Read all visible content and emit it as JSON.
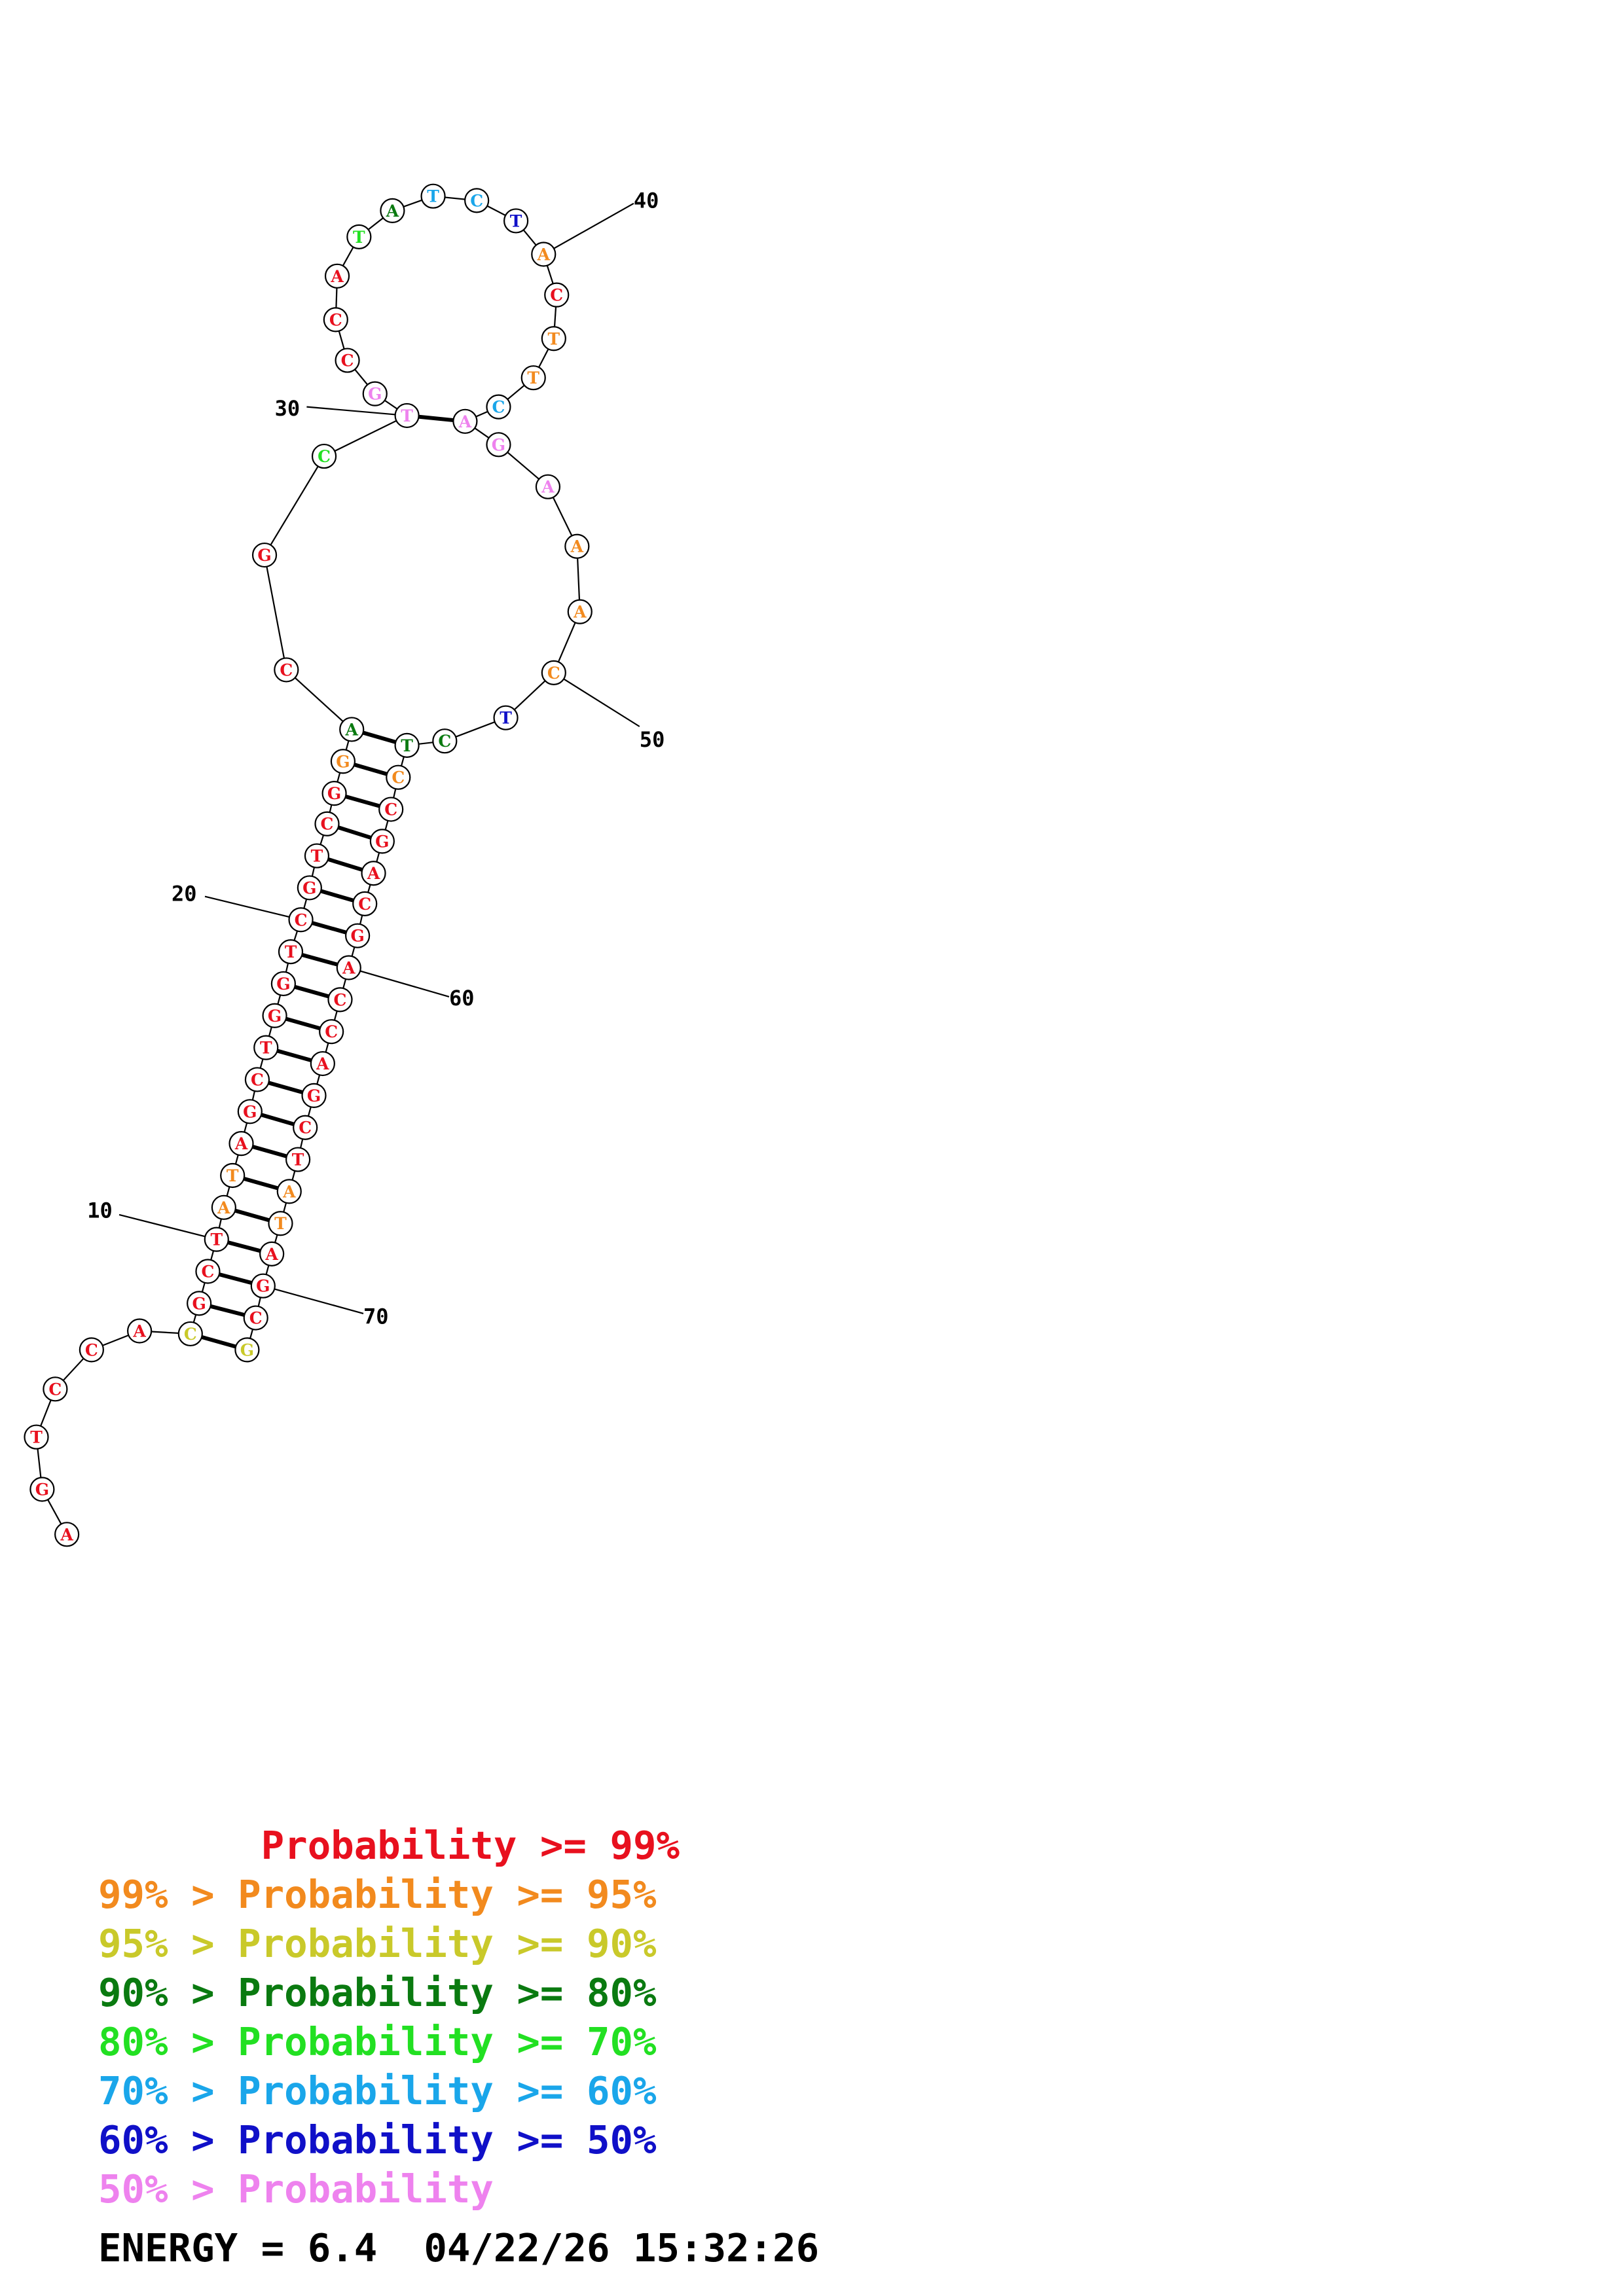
{
  "colors": {
    "c99": "#e8101e",
    "c95": "#f28a1e",
    "c90": "#c9c92a",
    "c80": "#0a7a10",
    "c70": "#22e022",
    "c60": "#1aa6ea",
    "c50": "#1010c8",
    "clow": "#ee82ee"
  },
  "structure": {
    "sequence": [
      {
        "n": 1,
        "base": "A",
        "prob": "c99"
      },
      {
        "n": 2,
        "base": "G",
        "prob": "c99"
      },
      {
        "n": 3,
        "base": "T",
        "prob": "c99"
      },
      {
        "n": 4,
        "base": "C",
        "prob": "c99"
      },
      {
        "n": 5,
        "base": "C",
        "prob": "c99"
      },
      {
        "n": 6,
        "base": "A",
        "prob": "c99"
      },
      {
        "n": 7,
        "base": "C",
        "prob": "c90"
      },
      {
        "n": 8,
        "base": "G",
        "prob": "c99"
      },
      {
        "n": 9,
        "base": "C",
        "prob": "c99"
      },
      {
        "n": 10,
        "base": "T",
        "prob": "c99"
      },
      {
        "n": 11,
        "base": "A",
        "prob": "c95"
      },
      {
        "n": 12,
        "base": "T",
        "prob": "c95"
      },
      {
        "n": 13,
        "base": "A",
        "prob": "c99"
      },
      {
        "n": 14,
        "base": "G",
        "prob": "c99"
      },
      {
        "n": 15,
        "base": "C",
        "prob": "c99"
      },
      {
        "n": 16,
        "base": "T",
        "prob": "c99"
      },
      {
        "n": 17,
        "base": "G",
        "prob": "c99"
      },
      {
        "n": 18,
        "base": "G",
        "prob": "c99"
      },
      {
        "n": 19,
        "base": "T",
        "prob": "c99"
      },
      {
        "n": 20,
        "base": "C",
        "prob": "c99"
      },
      {
        "n": 21,
        "base": "G",
        "prob": "c99"
      },
      {
        "n": 22,
        "base": "T",
        "prob": "c99"
      },
      {
        "n": 23,
        "base": "C",
        "prob": "c99"
      },
      {
        "n": 24,
        "base": "G",
        "prob": "c99"
      },
      {
        "n": 25,
        "base": "G",
        "prob": "c95"
      },
      {
        "n": 26,
        "base": "A",
        "prob": "c80"
      },
      {
        "n": 27,
        "base": "C",
        "prob": "c99"
      },
      {
        "n": 28,
        "base": "G",
        "prob": "c99"
      },
      {
        "n": 29,
        "base": "C",
        "prob": "c70"
      },
      {
        "n": 30,
        "base": "T",
        "prob": "clow"
      },
      {
        "n": 31,
        "base": "G",
        "prob": "clow"
      },
      {
        "n": 32,
        "base": "C",
        "prob": "c99"
      },
      {
        "n": 33,
        "base": "C",
        "prob": "c99"
      },
      {
        "n": 34,
        "base": "A",
        "prob": "c99"
      },
      {
        "n": 35,
        "base": "T",
        "prob": "c70"
      },
      {
        "n": 36,
        "base": "A",
        "prob": "c80"
      },
      {
        "n": 37,
        "base": "T",
        "prob": "c60"
      },
      {
        "n": 38,
        "base": "C",
        "prob": "c60"
      },
      {
        "n": 39,
        "base": "T",
        "prob": "c50"
      },
      {
        "n": 40,
        "base": "A",
        "prob": "c95"
      },
      {
        "n": 41,
        "base": "C",
        "prob": "c99"
      },
      {
        "n": 42,
        "base": "T",
        "prob": "c95"
      },
      {
        "n": 43,
        "base": "T",
        "prob": "c95"
      },
      {
        "n": 44,
        "base": "C",
        "prob": "c60"
      },
      {
        "n": 45,
        "base": "A",
        "prob": "clow"
      },
      {
        "n": 46,
        "base": "G",
        "prob": "clow"
      },
      {
        "n": 47,
        "base": "A",
        "prob": "clow"
      },
      {
        "n": 48,
        "base": "A",
        "prob": "c95"
      },
      {
        "n": 49,
        "base": "A",
        "prob": "c95"
      },
      {
        "n": 50,
        "base": "C",
        "prob": "c95"
      },
      {
        "n": 51,
        "base": "T",
        "prob": "c50"
      },
      {
        "n": 52,
        "base": "C",
        "prob": "c80"
      },
      {
        "n": 53,
        "base": "T",
        "prob": "c80"
      },
      {
        "n": 54,
        "base": "C",
        "prob": "c95"
      },
      {
        "n": 55,
        "base": "C",
        "prob": "c99"
      },
      {
        "n": 56,
        "base": "G",
        "prob": "c99"
      },
      {
        "n": 57,
        "base": "A",
        "prob": "c99"
      },
      {
        "n": 58,
        "base": "C",
        "prob": "c99"
      },
      {
        "n": 59,
        "base": "G",
        "prob": "c99"
      },
      {
        "n": 60,
        "base": "A",
        "prob": "c99"
      },
      {
        "n": 61,
        "base": "C",
        "prob": "c99"
      },
      {
        "n": 62,
        "base": "C",
        "prob": "c99"
      },
      {
        "n": 63,
        "base": "A",
        "prob": "c99"
      },
      {
        "n": 64,
        "base": "G",
        "prob": "c99"
      },
      {
        "n": 65,
        "base": "C",
        "prob": "c99"
      },
      {
        "n": 66,
        "base": "T",
        "prob": "c99"
      },
      {
        "n": 67,
        "base": "A",
        "prob": "c95"
      },
      {
        "n": 68,
        "base": "T",
        "prob": "c95"
      },
      {
        "n": 69,
        "base": "A",
        "prob": "c99"
      },
      {
        "n": 70,
        "base": "G",
        "prob": "c99"
      },
      {
        "n": 71,
        "base": "C",
        "prob": "c99"
      },
      {
        "n": 72,
        "base": "G",
        "prob": "c90"
      }
    ],
    "pairs": [
      [
        7,
        72
      ],
      [
        8,
        71
      ],
      [
        9,
        70
      ],
      [
        10,
        69
      ],
      [
        11,
        68
      ],
      [
        12,
        67
      ],
      [
        13,
        66
      ],
      [
        14,
        65
      ],
      [
        15,
        64
      ],
      [
        16,
        63
      ],
      [
        17,
        62
      ],
      [
        18,
        61
      ],
      [
        19,
        60
      ],
      [
        20,
        59
      ],
      [
        21,
        58
      ],
      [
        22,
        57
      ],
      [
        23,
        56
      ],
      [
        24,
        55
      ],
      [
        25,
        54
      ],
      [
        26,
        53
      ],
      [
        30,
        45
      ]
    ],
    "tick_labels": [
      {
        "n": 10,
        "text": "10"
      },
      {
        "n": 20,
        "text": "20"
      },
      {
        "n": 30,
        "text": "30"
      },
      {
        "n": 40,
        "text": "40"
      },
      {
        "n": 50,
        "text": "50"
      },
      {
        "n": 60,
        "text": "60"
      },
      {
        "n": 70,
        "text": "70"
      }
    ]
  },
  "legend": [
    {
      "prefix": "       ",
      "text": "Probability >= 99%",
      "color": "c99"
    },
    {
      "prefix": "99% > ",
      "text": "Probability >= 95%",
      "color": "c95"
    },
    {
      "prefix": "95% > ",
      "text": "Probability >= 90%",
      "color": "c90"
    },
    {
      "prefix": "90% > ",
      "text": "Probability >= 80%",
      "color": "c80"
    },
    {
      "prefix": "80% > ",
      "text": "Probability >= 70%",
      "color": "c70"
    },
    {
      "prefix": "70% > ",
      "text": "Probability >= 60%",
      "color": "c60"
    },
    {
      "prefix": "60% > ",
      "text": "Probability >= 50%",
      "color": "c50"
    },
    {
      "prefix": "50% > ",
      "text": "Probability",
      "color": "clow"
    }
  ],
  "footer": {
    "energy": "ENERGY = 6.4",
    "timestamp": "04/22/26 15:32:26"
  }
}
